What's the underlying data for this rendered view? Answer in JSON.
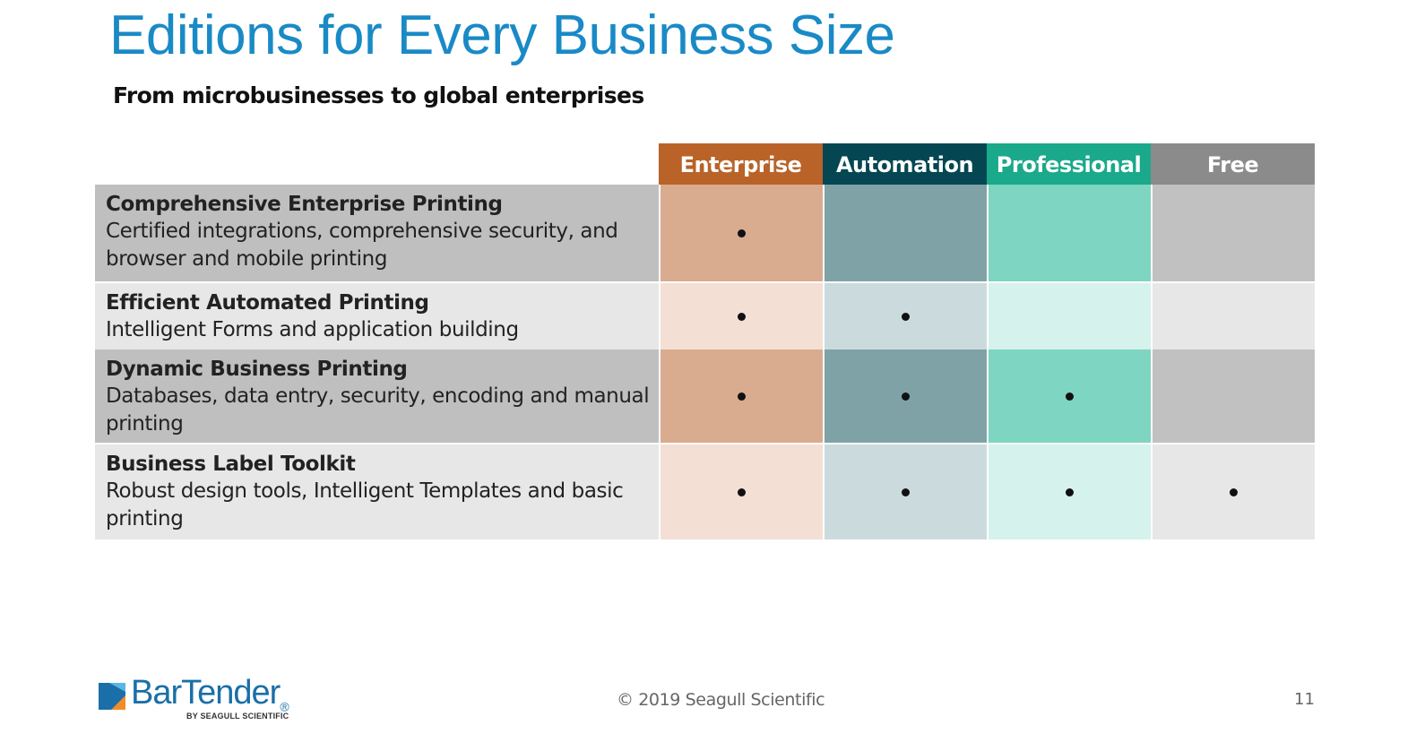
{
  "slide": {
    "title": "Editions for Every Business Size",
    "subtitle": "From microbusinesses to global enterprises",
    "page_number": "11",
    "copyright": "© 2019 Seagull Scientific"
  },
  "editions": [
    {
      "label": "Enterprise",
      "color": "#b96328"
    },
    {
      "label": "Automation",
      "color": "#044753"
    },
    {
      "label": "Professional",
      "color": "#1aa98a"
    },
    {
      "label": "Free",
      "color": "#8b8b8b"
    }
  ],
  "features": [
    {
      "title": "Comprehensive Enterprise Printing",
      "desc_line1": "Certified integrations, comprehensive security, and",
      "desc_line2": "browser and mobile printing",
      "included": [
        true,
        false,
        false,
        false
      ]
    },
    {
      "title": "Efficient Automated Printing",
      "desc_line1": "Intelligent Forms and application building",
      "desc_line2": "",
      "included": [
        true,
        true,
        false,
        false
      ]
    },
    {
      "title": "Dynamic Business Printing",
      "desc_line1": "Databases, data entry, security, encoding and manual",
      "desc_line2": "printing",
      "included": [
        true,
        true,
        true,
        false
      ]
    },
    {
      "title": "Business Label Toolkit",
      "desc_line1": "Robust design tools, Intelligent Templates and basic",
      "desc_line2": "printing",
      "included": [
        true,
        true,
        true,
        true
      ]
    }
  ],
  "colors": {
    "title": "#1a8ac6",
    "row_dark_label": "#bfbfbf",
    "row_light_label": "#e7e7e7",
    "enterprise_dark": "#d9ab8f",
    "enterprise_light": "#f4dfd4",
    "automation_dark": "#7fa2a7",
    "automation_light": "#cbdbdd",
    "professional_dark": "#7ed5c1",
    "professional_light": "#d6f2ec",
    "free_dark": "#c1c1c1",
    "free_light": "#e7e7e7"
  },
  "logo": {
    "brand": "BarTender",
    "tagline": "BY SEAGULL SCIENTIFIC",
    "icon": "bartender-logo-icon"
  }
}
